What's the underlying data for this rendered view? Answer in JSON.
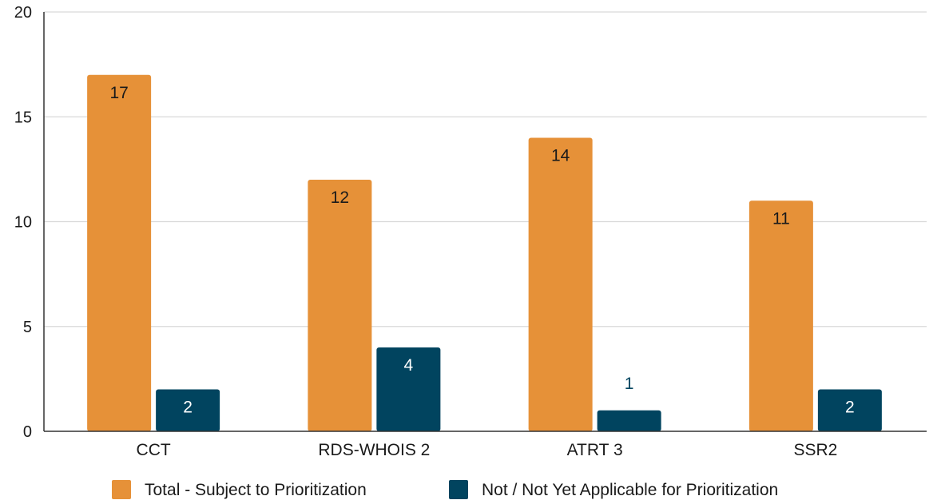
{
  "chart_data": {
    "type": "bar",
    "title": "",
    "xlabel": "",
    "ylabel": "",
    "categories": [
      "CCT",
      "RDS-WHOIS 2",
      "ATRT 3",
      "SSR2"
    ],
    "series": [
      {
        "name": "Total - Subject to Prioritization",
        "values": [
          17,
          12,
          14,
          11
        ],
        "color": "#e69138",
        "label_color": "#1a1a1a"
      },
      {
        "name": "Not / Not Yet Applicable for Prioritization",
        "values": [
          2,
          4,
          1,
          2
        ],
        "color": "#01445f",
        "label_color": "#ffffff"
      }
    ],
    "ylim": [
      0,
      20
    ],
    "yticks": [
      0,
      5,
      10,
      15,
      20
    ],
    "grid": true,
    "legend": "bottom"
  }
}
